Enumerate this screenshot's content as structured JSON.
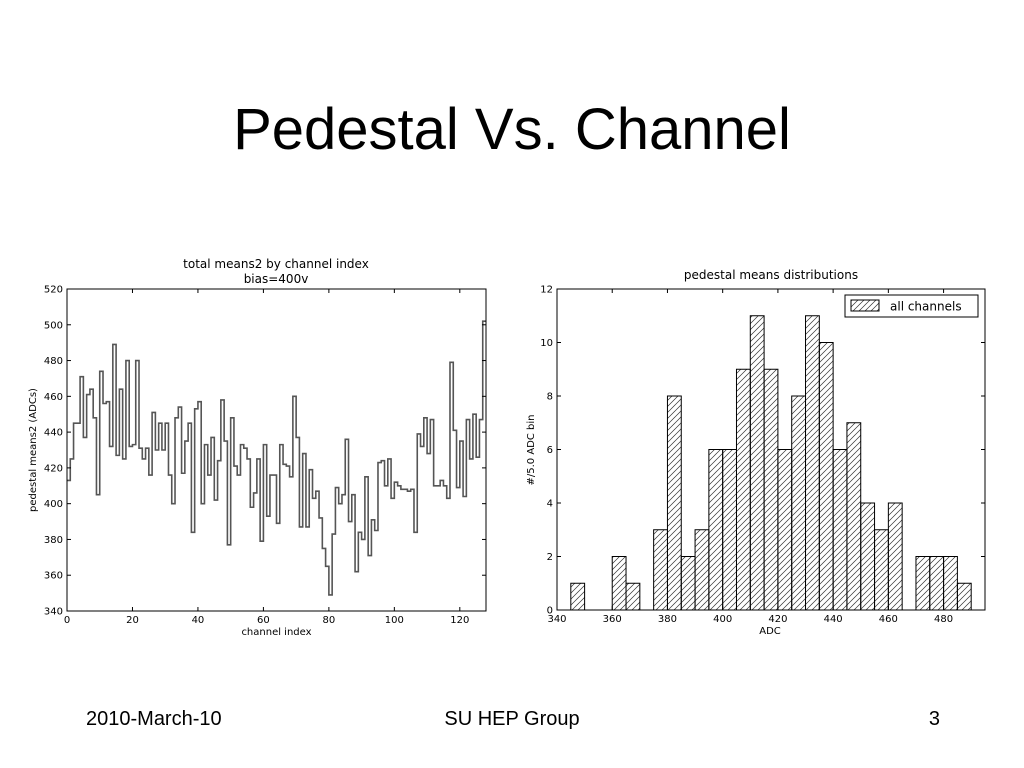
{
  "slide": {
    "title": "Pedestal Vs. Channel",
    "footer_left": "2010-March-10",
    "footer_center": "SU HEP Group",
    "footer_right": "3"
  },
  "chart_data": [
    {
      "type": "line",
      "style": "step",
      "title": "total means2 by channel index",
      "subtitle": "bias=400v",
      "xlabel": "channel index",
      "ylabel": "pedestal means2 (ADCs)",
      "xlim": [
        0,
        128
      ],
      "ylim": [
        340,
        520
      ],
      "xticks": [
        0,
        20,
        40,
        60,
        80,
        100,
        120
      ],
      "yticks": [
        340,
        360,
        380,
        400,
        420,
        440,
        460,
        480,
        500,
        520
      ],
      "grid": false,
      "series": [
        {
          "values": [
            413,
            425,
            445,
            445,
            471,
            437,
            461,
            464,
            448,
            405,
            474,
            456,
            457,
            432,
            489,
            427,
            464,
            425,
            480,
            432,
            433,
            480,
            431,
            425,
            431,
            416,
            451,
            430,
            445,
            430,
            445,
            416,
            400,
            448,
            454,
            417,
            435,
            445,
            384,
            453,
            457,
            400,
            433,
            416,
            437,
            402,
            424,
            458,
            435,
            377,
            448,
            421,
            416,
            433,
            431,
            425,
            398,
            406,
            425,
            379,
            433,
            393,
            416,
            416,
            389,
            433,
            422,
            421,
            415,
            460,
            437,
            387,
            428,
            387,
            419,
            403,
            407,
            392,
            375,
            365,
            349,
            383,
            409,
            400,
            405,
            436,
            390,
            405,
            362,
            384,
            380,
            415,
            371,
            391,
            385,
            423,
            424,
            410,
            425,
            403,
            412,
            410,
            408,
            408,
            407,
            408,
            384,
            439,
            432,
            448,
            428,
            447,
            410,
            410,
            413,
            410,
            403,
            479,
            441,
            409,
            435,
            404,
            447,
            425,
            450,
            426,
            447,
            502
          ]
        }
      ]
    },
    {
      "type": "bar",
      "style": "histogram-hatched",
      "title": "pedestal means distributions",
      "xlabel": "ADC",
      "ylabel": "#/5.0 ADC bin",
      "xlim": [
        340,
        495
      ],
      "ylim": [
        0,
        12
      ],
      "xticks": [
        340,
        360,
        380,
        400,
        420,
        440,
        460,
        480
      ],
      "yticks": [
        0,
        2,
        4,
        6,
        8,
        10,
        12
      ],
      "legend": [
        "all channels"
      ],
      "legend_position": "top-right",
      "grid": false,
      "bin_width": 5,
      "bin_edges": [
        345,
        350,
        355,
        360,
        365,
        370,
        375,
        380,
        385,
        390,
        395,
        400,
        405,
        410,
        415,
        420,
        425,
        430,
        435,
        440,
        445,
        450,
        455,
        460,
        465,
        470,
        475,
        480,
        485,
        490
      ],
      "values": [
        1,
        0,
        0,
        2,
        1,
        0,
        3,
        8,
        2,
        3,
        6,
        6,
        9,
        11,
        9,
        6,
        8,
        11,
        10,
        6,
        7,
        4,
        3,
        4,
        0,
        2,
        2,
        2,
        1
      ]
    }
  ]
}
